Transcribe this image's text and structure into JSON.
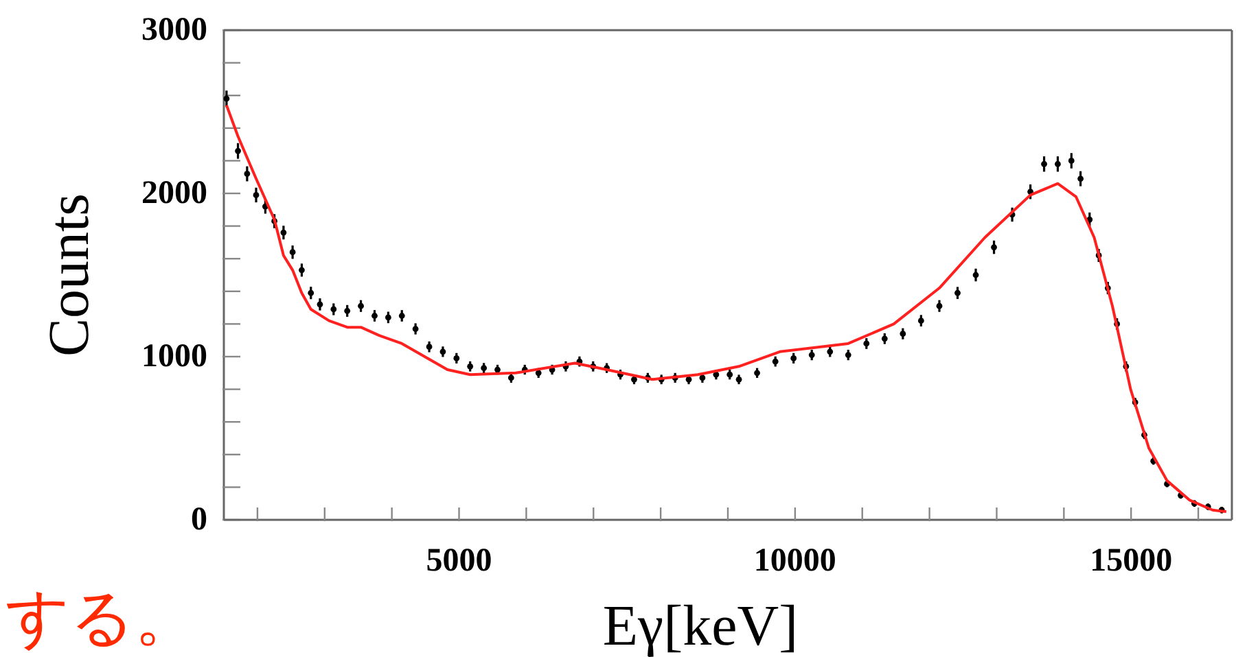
{
  "chart_data": {
    "type": "scatter",
    "xlabel": "Eγ[keV]",
    "ylabel": "Counts",
    "annotations": [
      "する。"
    ],
    "xlim": [
      1500,
      16500
    ],
    "ylim": [
      0,
      3000
    ],
    "xticks": [
      {
        "value": 2000,
        "label": null
      },
      {
        "value": 3000,
        "label": null
      },
      {
        "value": 4000,
        "label": null
      },
      5000,
      {
        "value": 6000,
        "label": null
      },
      {
        "value": 7000,
        "label": null
      },
      {
        "value": 8000,
        "label": null
      },
      {
        "value": 9000,
        "label": null
      },
      10000,
      {
        "value": 11000,
        "label": null
      },
      {
        "value": 12000,
        "label": null
      },
      {
        "value": 13000,
        "label": null
      },
      {
        "value": 14000,
        "label": null
      },
      15000,
      {
        "value": 16000,
        "label": null
      }
    ],
    "yticks": [
      0,
      {
        "value": 200,
        "label": null
      },
      {
        "value": 400,
        "label": null
      },
      {
        "value": 600,
        "label": null
      },
      {
        "value": 800,
        "label": null
      },
      1000,
      {
        "value": 1200,
        "label": null
      },
      {
        "value": 1400,
        "label": null
      },
      {
        "value": 1600,
        "label": null
      },
      {
        "value": 1800,
        "label": null
      },
      2000,
      {
        "value": 2200,
        "label": null
      },
      {
        "value": 2400,
        "label": null
      },
      {
        "value": 2600,
        "label": null
      },
      {
        "value": 2800,
        "label": null
      },
      3000
    ],
    "grid": false,
    "series": [
      {
        "marker": "circle",
        "color": "#000000",
        "x": [
          1540,
          1710,
          1846,
          1980,
          2117,
          2252,
          2388,
          2523,
          2659,
          2795,
          2930,
          3133,
          3336,
          3539,
          3743,
          3946,
          4149,
          4352,
          4556,
          4759,
          4962,
          5165,
          5369,
          5572,
          5775,
          5978,
          6182,
          6385,
          6588,
          6792,
          6995,
          7198,
          7401,
          7605,
          7808,
          8011,
          8215,
          8418,
          8621,
          8825,
          9028,
          9164,
          9435,
          9707,
          9978,
          10249,
          10520,
          10791,
          11062,
          11333,
          11604,
          11875,
          12147,
          12418,
          12689,
          12960,
          13231,
          13502,
          13706,
          13909,
          14112,
          14248,
          14383,
          14519,
          14654,
          14790,
          14925,
          15061,
          15197,
          15332,
          15535,
          15739,
          15942,
          16145,
          16349
        ],
        "values": [
          2580,
          2260,
          2120,
          1990,
          1920,
          1830,
          1760,
          1640,
          1530,
          1390,
          1320,
          1290,
          1280,
          1310,
          1250,
          1240,
          1250,
          1170,
          1060,
          1030,
          990,
          940,
          930,
          920,
          870,
          920,
          900,
          920,
          940,
          970,
          940,
          930,
          890,
          860,
          870,
          860,
          870,
          860,
          870,
          890,
          890,
          860,
          900,
          970,
          990,
          1010,
          1030,
          1010,
          1080,
          1110,
          1140,
          1220,
          1310,
          1390,
          1500,
          1670,
          1870,
          2010,
          2180,
          2180,
          2200,
          2090,
          1840,
          1620,
          1420,
          1200,
          940,
          720,
          520,
          360,
          220,
          150,
          100,
          80,
          60
        ],
        "errors": [
          50,
          48,
          46,
          45,
          44,
          43,
          42,
          41,
          40,
          38,
          37,
          36,
          36,
          36,
          35,
          35,
          35,
          34,
          33,
          32,
          32,
          31,
          31,
          30,
          30,
          30,
          30,
          30,
          31,
          31,
          31,
          30,
          30,
          29,
          30,
          29,
          30,
          29,
          30,
          30,
          30,
          29,
          30,
          31,
          32,
          32,
          32,
          32,
          33,
          33,
          34,
          35,
          36,
          37,
          39,
          41,
          43,
          45,
          47,
          47,
          47,
          46,
          43,
          40,
          38,
          35,
          31,
          27,
          25,
          22,
          20,
          20,
          20,
          20,
          20
        ]
      },
      {
        "type": "line",
        "color": "#ff2020",
        "x": [
          1540,
          1710,
          1980,
          2252,
          2388,
          2523,
          2659,
          2795,
          3065,
          3336,
          3539,
          3811,
          4149,
          4488,
          4827,
          5165,
          5843,
          6724,
          7198,
          7876,
          8554,
          9164,
          9774,
          10791,
          11469,
          12147,
          12825,
          13502,
          13909,
          14180,
          14451,
          14722,
          14993,
          15264,
          15535,
          15874,
          16213,
          16417
        ],
        "values": [
          2540,
          2350,
          2090,
          1840,
          1620,
          1530,
          1390,
          1290,
          1220,
          1180,
          1180,
          1130,
          1080,
          1000,
          920,
          890,
          900,
          960,
          920,
          860,
          890,
          940,
          1030,
          1080,
          1200,
          1420,
          1730,
          1990,
          2060,
          1980,
          1730,
          1310,
          800,
          440,
          240,
          120,
          60,
          50
        ]
      }
    ]
  }
}
